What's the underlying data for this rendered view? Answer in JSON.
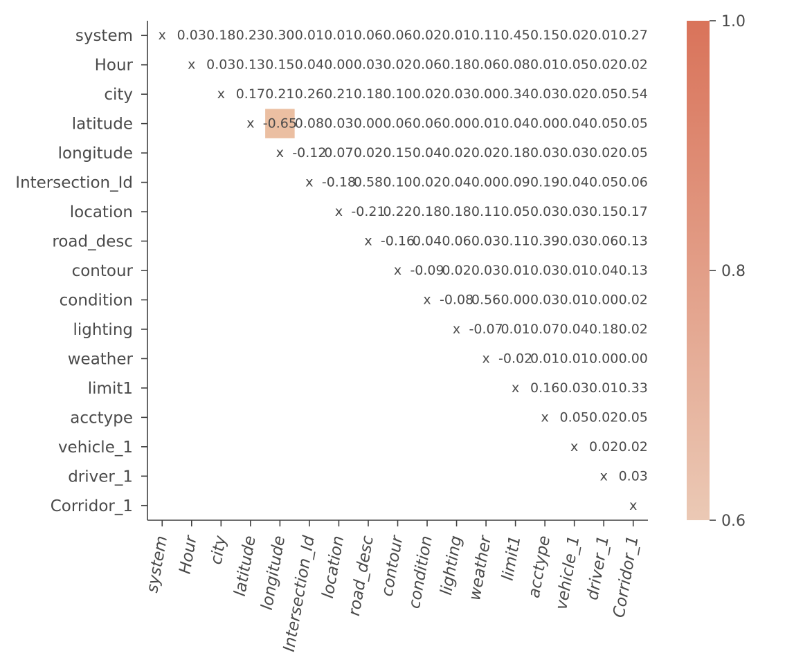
{
  "chart_data": {
    "type": "heatmap",
    "variables": [
      "system",
      "Hour",
      "city",
      "latitude",
      "longitude",
      "Intersection_Id",
      "location",
      "road_desc",
      "contour",
      "condition",
      "lighting",
      "weather",
      "limit1",
      "acctype",
      "vehicle_1",
      "driver_1",
      "Corridor_1"
    ],
    "diagonal_label": "x",
    "upper_triangle_labels": [
      [
        "0.03",
        "0.18",
        "0.23",
        "0.30",
        "0.01",
        "0.01",
        "0.06",
        "0.06",
        "0.02",
        "0.01",
        "0.11",
        "0.45",
        "0.15",
        "0.02",
        "0.01",
        "0.27"
      ],
      [
        "0.03",
        "0.13",
        "0.15",
        "0.04",
        "0.00",
        "0.03",
        "0.02",
        "0.06",
        "0.18",
        "0.06",
        "0.08",
        "0.01",
        "0.05",
        "0.02",
        "0.02"
      ],
      [
        "0.17",
        "0.21",
        "0.26",
        "0.21",
        "0.18",
        "0.10",
        "0.02",
        "0.03",
        "0.00",
        "0.34",
        "0.03",
        "0.02",
        "0.05",
        "0.54"
      ],
      [
        "-0.65",
        "0.08",
        "0.03",
        "0.00",
        "0.06",
        "0.06",
        "0.00",
        "0.01",
        "0.04",
        "0.00",
        "0.04",
        "0.05",
        "0.05"
      ],
      [
        "-0.12",
        "0.07",
        "0.02",
        "0.15",
        "0.04",
        "0.02",
        "0.02",
        "0.18",
        "0.03",
        "0.03",
        "0.02",
        "0.05"
      ],
      [
        "-0.18",
        "0.58",
        "0.10",
        "0.02",
        "0.04",
        "0.00",
        "0.09",
        "0.19",
        "0.04",
        "0.05",
        "0.06"
      ],
      [
        "-0.21",
        "0.22",
        "0.18",
        "0.18",
        "0.11",
        "0.05",
        "0.03",
        "0.03",
        "0.15",
        "0.17"
      ],
      [
        "-0.16",
        "0.04",
        "0.06",
        "0.03",
        "0.11",
        "0.39",
        "0.03",
        "0.06",
        "0.13"
      ],
      [
        "-0.09",
        "0.02",
        "0.03",
        "0.01",
        "0.03",
        "0.01",
        "0.04",
        "0.13"
      ],
      [
        "-0.08",
        "0.56",
        "0.00",
        "0.03",
        "0.01",
        "0.00",
        "0.02"
      ],
      [
        "-0.07",
        "0.01",
        "0.07",
        "0.04",
        "0.18",
        "0.02"
      ],
      [
        "-0.02",
        "0.01",
        "0.01",
        "0.00",
        "0.00"
      ],
      [
        "0.16",
        "0.03",
        "0.01",
        "0.33"
      ],
      [
        "0.05",
        "0.02",
        "0.05"
      ],
      [
        "0.02",
        "0.02"
      ],
      [
        "0.03"
      ],
      []
    ],
    "highlighted_cells": [
      {
        "row": "latitude",
        "column": "longitude",
        "value": -0.65,
        "color_value": 0.65
      }
    ],
    "colorbar": {
      "min": 0.6,
      "max": 1.0,
      "ticks": [
        "0.6",
        "0.8",
        "1.0"
      ],
      "color_low": "#ebc9b5",
      "color_high": "#d9735a"
    },
    "highlight_color": "#ebbfa2",
    "title": "",
    "xlabel": "",
    "ylabel": ""
  }
}
